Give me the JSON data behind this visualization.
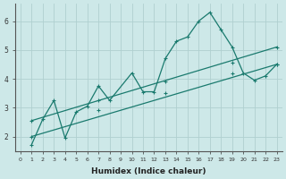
{
  "xlabel": "Humidex (Indice chaleur)",
  "ylabel": "",
  "xlim": [
    -0.5,
    23.5
  ],
  "ylim": [
    1.5,
    6.6
  ],
  "xticks": [
    0,
    1,
    2,
    3,
    4,
    5,
    6,
    7,
    8,
    9,
    10,
    11,
    12,
    13,
    14,
    15,
    16,
    17,
    18,
    19,
    20,
    21,
    22,
    23
  ],
  "yticks": [
    2,
    3,
    4,
    5,
    6
  ],
  "background_color": "#cde8e8",
  "grid_color": "#b0d0d0",
  "line_color": "#1a7a6e",
  "lines": [
    {
      "x": [
        1,
        2,
        3,
        4,
        5,
        6,
        7,
        8,
        10,
        11,
        12,
        13,
        14,
        15,
        16,
        17,
        18,
        19,
        20,
        21,
        22,
        23
      ],
      "y": [
        1.72,
        2.6,
        3.25,
        1.95,
        2.85,
        3.05,
        3.75,
        3.25,
        4.2,
        3.55,
        3.55,
        4.7,
        5.3,
        5.45,
        6.0,
        6.3,
        5.7,
        5.1,
        4.2,
        3.95,
        4.1,
        4.5
      ]
    },
    {
      "x": [
        1,
        23
      ],
      "y": [
        2.55,
        5.1
      ],
      "markers_x": [
        1,
        7,
        13,
        19,
        23
      ],
      "markers_y": [
        2.55,
        3.25,
        3.9,
        4.55,
        5.1
      ]
    },
    {
      "x": [
        1,
        23
      ],
      "y": [
        2.0,
        4.5
      ],
      "markers_x": [
        1,
        7,
        13,
        19,
        23
      ],
      "markers_y": [
        2.0,
        2.9,
        3.5,
        4.2,
        4.5
      ]
    }
  ]
}
